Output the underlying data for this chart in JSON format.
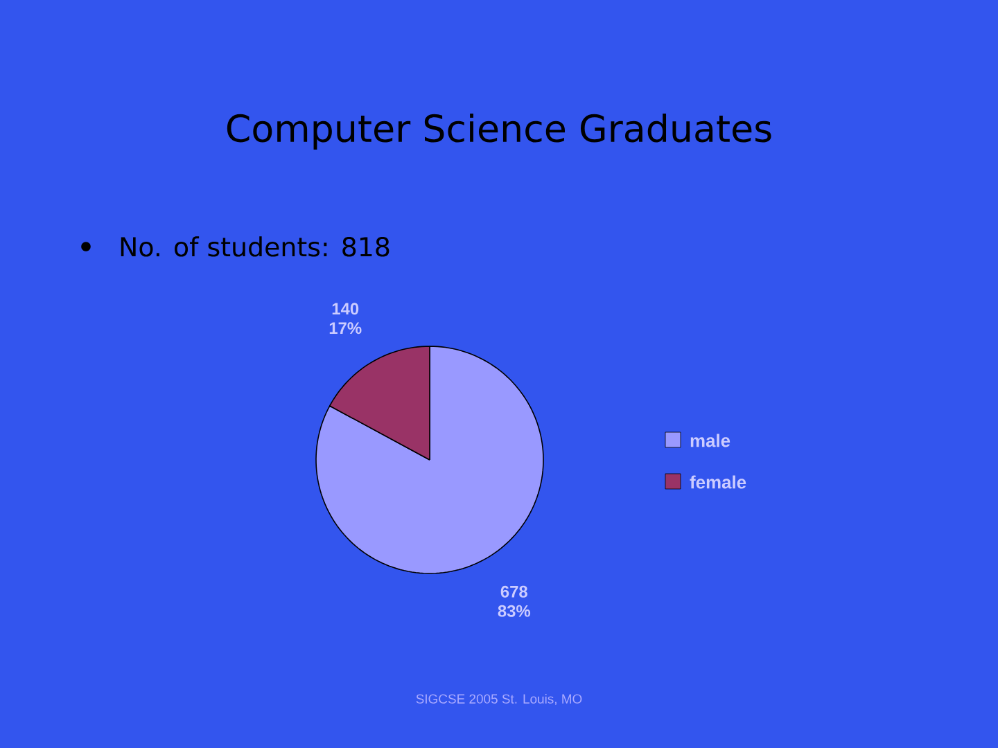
{
  "chart_data": {
    "type": "pie",
    "title": "Computer Science Graduates",
    "subtitle": "No. of students: 818",
    "categories": [
      "male",
      "female"
    ],
    "values": [
      678,
      140
    ],
    "colors": [
      "#9999ff",
      "#993366"
    ],
    "value_labels": [
      "678 83%",
      "140 17%"
    ],
    "legend": "right",
    "annotations": [
      "SIGCSE 2005 St. Louis, MO"
    ]
  }
}
